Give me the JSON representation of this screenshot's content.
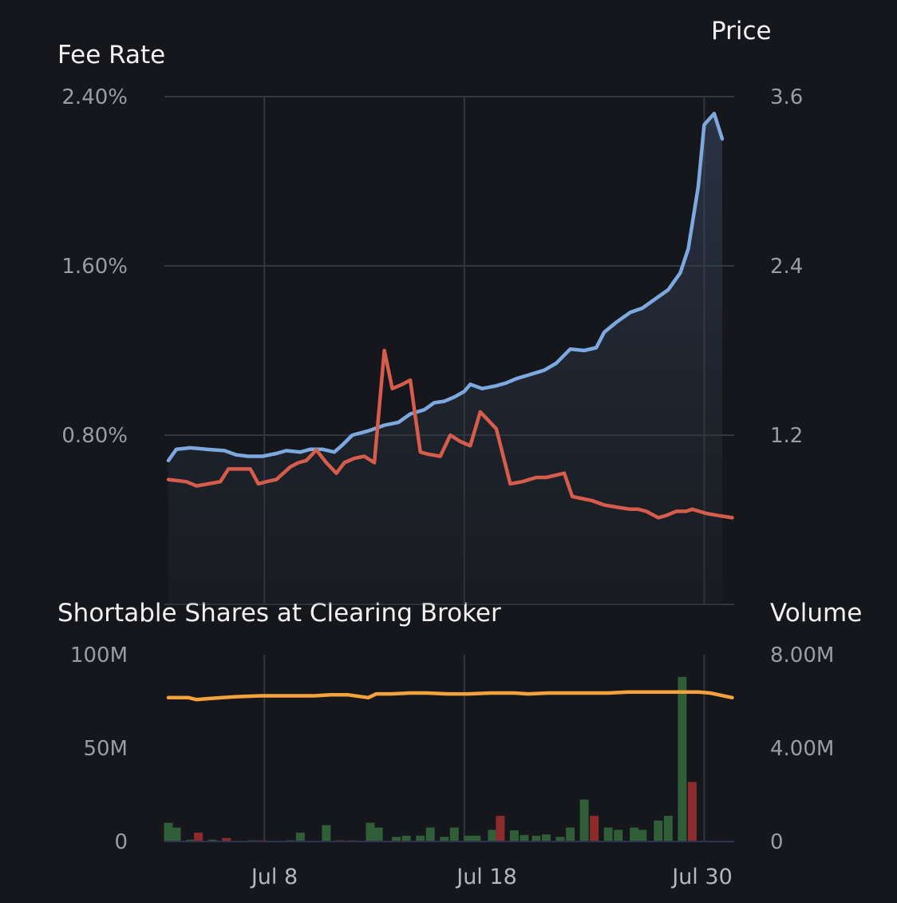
{
  "chart_data": [
    {
      "type": "line",
      "panel": "top",
      "title_left": "Fee Rate",
      "title_right": "Price",
      "y_left_ticks": [
        "2.40%",
        "1.60%",
        "0.80%"
      ],
      "y_right_ticks": [
        "3.6",
        "2.4",
        "1.2"
      ],
      "y_left_range": [
        0,
        2.4
      ],
      "y_right_range": [
        0,
        3.6
      ],
      "x_ticks": [
        {
          "label": "Jul 8",
          "day": 8
        },
        {
          "label": "Jul 18",
          "day": 18
        },
        {
          "label": "Jul 30",
          "day": 30
        }
      ],
      "x_range": [
        3,
        31.5
      ],
      "grid": true,
      "series": [
        {
          "key": "price",
          "axis": "right",
          "color": "#7ea9e0",
          "fill": true,
          "x": [
            3.2,
            3.6,
            4.3,
            5.1,
            6,
            6.6,
            7.2,
            7.9,
            8.6,
            9.1,
            9.8,
            10.3,
            10.9,
            11.5,
            11.9,
            12.4,
            13.2,
            14,
            14.7,
            15.3,
            16,
            16.5,
            17,
            17.5,
            18,
            18.3,
            18.9,
            19.6,
            20.1,
            20.6,
            21.3,
            22,
            22.6,
            23.3,
            24,
            24.6,
            25,
            25.6,
            26.3,
            26.9,
            27.6,
            28.2,
            28.8,
            29.2,
            29.7,
            30,
            30.5,
            30.9
          ],
          "y": [
            1.02,
            1.1,
            1.11,
            1.1,
            1.09,
            1.06,
            1.05,
            1.05,
            1.07,
            1.09,
            1.08,
            1.1,
            1.1,
            1.08,
            1.13,
            1.2,
            1.23,
            1.27,
            1.29,
            1.35,
            1.38,
            1.43,
            1.44,
            1.47,
            1.51,
            1.56,
            1.53,
            1.55,
            1.57,
            1.6,
            1.63,
            1.66,
            1.71,
            1.81,
            1.8,
            1.82,
            1.93,
            2.0,
            2.07,
            2.1,
            2.17,
            2.23,
            2.35,
            2.52,
            2.96,
            3.4,
            3.48,
            3.3
          ]
        },
        {
          "key": "fee_rate",
          "axis": "left",
          "color": "#d65c4c",
          "fill": false,
          "x": [
            3.2,
            4.1,
            4.6,
            5.2,
            5.8,
            6.2,
            6.8,
            7.3,
            7.7,
            8.1,
            8.6,
            9.3,
            9.7,
            10.1,
            10.6,
            11.1,
            11.6,
            12,
            12.5,
            13,
            13.5,
            14,
            14.4,
            14.9,
            15.3,
            15.8,
            16.2,
            16.8,
            17.3,
            17.8,
            18.3,
            18.8,
            19.6,
            20.3,
            20.9,
            21.6,
            22.1,
            23,
            23.4,
            23.9,
            24.4,
            25,
            25.6,
            26.3,
            26.7,
            27.1,
            27.7,
            28.1,
            28.6,
            29.1,
            29.4,
            30.1,
            30.7,
            31.4
          ],
          "y": [
            0.59,
            0.58,
            0.56,
            0.57,
            0.58,
            0.64,
            0.64,
            0.64,
            0.57,
            0.58,
            0.59,
            0.65,
            0.67,
            0.68,
            0.73,
            0.67,
            0.62,
            0.67,
            0.69,
            0.7,
            0.67,
            1.2,
            1.02,
            1.04,
            1.06,
            0.72,
            0.71,
            0.7,
            0.8,
            0.77,
            0.75,
            0.91,
            0.83,
            0.57,
            0.58,
            0.6,
            0.6,
            0.62,
            0.51,
            0.5,
            0.49,
            0.47,
            0.46,
            0.45,
            0.45,
            0.44,
            0.41,
            0.42,
            0.44,
            0.44,
            0.45,
            0.43,
            0.42,
            0.41
          ]
        }
      ]
    },
    {
      "type": "bar",
      "panel": "bottom",
      "title_left": "Shortable Shares at Clearing Broker",
      "title_right": "Volume",
      "y_left_ticks": [
        "100M",
        "50M",
        "0"
      ],
      "y_right_ticks": [
        "8.00M",
        "4.00M",
        "0"
      ],
      "y_left_range": [
        0,
        100
      ],
      "y_right_range": [
        0,
        8
      ],
      "series": [
        {
          "key": "shortable_shares",
          "type": "line",
          "axis": "left",
          "color": "#f3a23c",
          "x": [
            3.2,
            4.2,
            4.6,
            5.2,
            5.9,
            6.6,
            7.8,
            9.2,
            10.5,
            11.3,
            12.2,
            13.2,
            13.6,
            14.3,
            15.3,
            16.1,
            17.2,
            18.2,
            19.3,
            20.5,
            21.2,
            22.2,
            23.3,
            24.1,
            25.2,
            26.2,
            26.8,
            27.6,
            28.3,
            29.2,
            29.7,
            30.3,
            31.4
          ],
          "y": [
            77,
            77,
            76,
            76.5,
            77,
            77.5,
            78,
            78,
            78,
            78.5,
            78.5,
            77,
            79,
            79,
            79.5,
            79.5,
            79,
            79,
            79.5,
            79.5,
            79,
            79.5,
            79.5,
            79.5,
            79.5,
            80,
            80,
            80,
            80,
            80,
            80,
            79.5,
            77
          ]
        },
        {
          "key": "volume",
          "type": "bar",
          "axis": "right",
          "up_color": "#2f5e39",
          "down_color": "#8c2a2c",
          "bars": [
            {
              "x": 3.2,
              "v": 0.8,
              "dir": "up"
            },
            {
              "x": 3.6,
              "v": 0.6,
              "dir": "up"
            },
            {
              "x": 4.3,
              "v": 0.08,
              "dir": "up"
            },
            {
              "x": 4.7,
              "v": 0.38,
              "dir": "down"
            },
            {
              "x": 5.4,
              "v": 0.08,
              "dir": "up"
            },
            {
              "x": 6.1,
              "v": 0.15,
              "dir": "down"
            },
            {
              "x": 7.4,
              "v": 0.05,
              "dir": "up"
            },
            {
              "x": 7.9,
              "v": 0.05,
              "dir": "down"
            },
            {
              "x": 9.3,
              "v": 0.05,
              "dir": "up"
            },
            {
              "x": 9.8,
              "v": 0.38,
              "dir": "up"
            },
            {
              "x": 11.1,
              "v": 0.7,
              "dir": "up"
            },
            {
              "x": 11.8,
              "v": 0.05,
              "dir": "down"
            },
            {
              "x": 12.4,
              "v": 0.05,
              "dir": "down"
            },
            {
              "x": 13.3,
              "v": 0.8,
              "dir": "up"
            },
            {
              "x": 13.7,
              "v": 0.6,
              "dir": "up"
            },
            {
              "x": 14.6,
              "v": 0.2,
              "dir": "up"
            },
            {
              "x": 15.1,
              "v": 0.25,
              "dir": "up"
            },
            {
              "x": 15.8,
              "v": 0.25,
              "dir": "up"
            },
            {
              "x": 16.3,
              "v": 0.6,
              "dir": "up"
            },
            {
              "x": 17.0,
              "v": 0.2,
              "dir": "up"
            },
            {
              "x": 17.5,
              "v": 0.6,
              "dir": "up"
            },
            {
              "x": 18.2,
              "v": 0.25,
              "dir": "up"
            },
            {
              "x": 18.6,
              "v": 0.25,
              "dir": "up"
            },
            {
              "x": 19.4,
              "v": 0.5,
              "dir": "up"
            },
            {
              "x": 19.8,
              "v": 1.1,
              "dir": "down"
            },
            {
              "x": 20.5,
              "v": 0.48,
              "dir": "up"
            },
            {
              "x": 21.0,
              "v": 0.28,
              "dir": "up"
            },
            {
              "x": 21.6,
              "v": 0.25,
              "dir": "up"
            },
            {
              "x": 22.1,
              "v": 0.3,
              "dir": "up"
            },
            {
              "x": 22.8,
              "v": 0.2,
              "dir": "up"
            },
            {
              "x": 23.3,
              "v": 0.6,
              "dir": "up"
            },
            {
              "x": 24.0,
              "v": 1.8,
              "dir": "up"
            },
            {
              "x": 24.5,
              "v": 1.1,
              "dir": "down"
            },
            {
              "x": 25.2,
              "v": 0.6,
              "dir": "up"
            },
            {
              "x": 25.7,
              "v": 0.5,
              "dir": "up"
            },
            {
              "x": 26.5,
              "v": 0.6,
              "dir": "up"
            },
            {
              "x": 26.9,
              "v": 0.5,
              "dir": "up"
            },
            {
              "x": 27.7,
              "v": 0.9,
              "dir": "up"
            },
            {
              "x": 28.2,
              "v": 1.1,
              "dir": "up"
            },
            {
              "x": 28.9,
              "v": 7.05,
              "dir": "up"
            },
            {
              "x": 29.4,
              "v": 2.55,
              "dir": "down"
            }
          ]
        }
      ]
    }
  ]
}
